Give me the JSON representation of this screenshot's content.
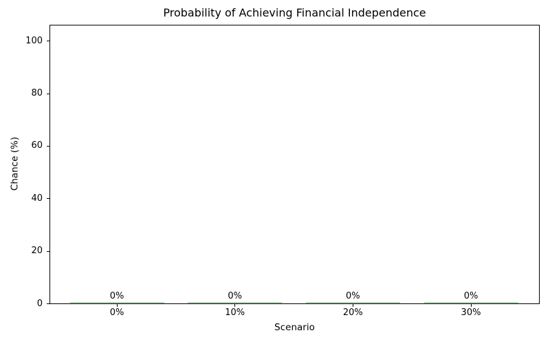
{
  "chart_data": {
    "type": "bar",
    "title": "Probability of Achieving Financial Independence",
    "xlabel": "Scenario",
    "ylabel": "Chance (%)",
    "categories": [
      "0%",
      "10%",
      "20%",
      "30%"
    ],
    "values": [
      0,
      0,
      0,
      0
    ],
    "bar_value_labels": [
      "0%",
      "0%",
      "0%",
      "0%"
    ],
    "ytick_labels": [
      "0",
      "20",
      "40",
      "60",
      "80",
      "100"
    ],
    "yticks": [
      0,
      20,
      40,
      60,
      80,
      100
    ],
    "ylim": [
      0,
      106
    ],
    "grid": false,
    "legend": false,
    "bar_color": "#b7cfb7",
    "axis_color": "#000000",
    "background_color": "#ffffff"
  }
}
